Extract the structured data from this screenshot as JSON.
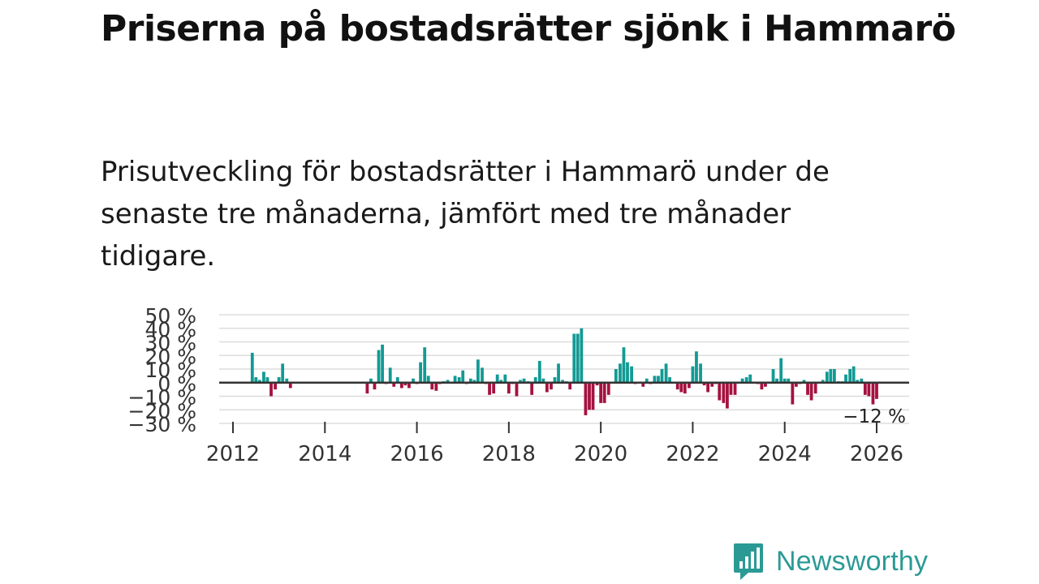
{
  "title": "Priserna på bostadsrätter sjönk i Hammarö",
  "subtitle": "Prisutveckling för bostadsrätter i Hammarö under de senaste tre månaderna, jämfört med tre månader tidigare.",
  "brand": {
    "name": "Newsworthy",
    "icon": "newsworthy-logo-icon",
    "color": "#2b9a95"
  },
  "colors": {
    "positive": "#139a94",
    "negative": "#a5123f",
    "grid": "#dddddd",
    "zero": "#333333"
  },
  "chart_data": {
    "type": "bar",
    "y_tick_labels": [
      "50 %",
      "40 %",
      "30 %",
      "20 %",
      "10 %",
      "0 %",
      "−10 %",
      "−20 %",
      "−30 %"
    ],
    "y_ticks": [
      50,
      40,
      30,
      20,
      10,
      0,
      -10,
      -20,
      -30
    ],
    "ylim": [
      -30,
      50
    ],
    "x_tick_labels": [
      "2012",
      "2014",
      "2016",
      "2018",
      "2020",
      "2022",
      "2024",
      "2026"
    ],
    "x_ticks": [
      2012,
      2014,
      2016,
      2018,
      2020,
      2022,
      2024,
      2026
    ],
    "xlim": [
      2011.75,
      2026.75
    ],
    "last_value_label": "−12 %",
    "series": [
      {
        "name": "Prisutveckling",
        "x": [
          2012.42,
          2012.5,
          2012.58,
          2012.67,
          2012.75,
          2012.83,
          2012.92,
          2013.0,
          2013.08,
          2013.17,
          2013.25,
          2014.92,
          2015.0,
          2015.08,
          2015.17,
          2015.25,
          2015.33,
          2015.42,
          2015.5,
          2015.58,
          2015.67,
          2015.75,
          2015.83,
          2015.92,
          2016.0,
          2016.08,
          2016.17,
          2016.25,
          2016.33,
          2016.42,
          2016.5,
          2016.58,
          2016.67,
          2016.75,
          2016.83,
          2016.92,
          2017.0,
          2017.08,
          2017.17,
          2017.25,
          2017.33,
          2017.42,
          2017.5,
          2017.58,
          2017.67,
          2017.75,
          2017.83,
          2017.92,
          2018.0,
          2018.08,
          2018.17,
          2018.25,
          2018.33,
          2018.42,
          2018.5,
          2018.58,
          2018.67,
          2018.75,
          2018.83,
          2018.92,
          2019.0,
          2019.08,
          2019.17,
          2019.25,
          2019.33,
          2019.42,
          2019.5,
          2019.58,
          2019.67,
          2019.75,
          2019.83,
          2019.92,
          2020.0,
          2020.08,
          2020.17,
          2020.25,
          2020.33,
          2020.42,
          2020.5,
          2020.58,
          2020.67,
          2020.75,
          2020.83,
          2020.92,
          2021.0,
          2021.08,
          2021.17,
          2021.25,
          2021.33,
          2021.42,
          2021.5,
          2021.58,
          2021.67,
          2021.75,
          2021.83,
          2021.92,
          2022.0,
          2022.08,
          2022.17,
          2022.25,
          2022.33,
          2022.42,
          2022.5,
          2022.58,
          2022.67,
          2022.75,
          2022.83,
          2022.92,
          2023.0,
          2023.08,
          2023.17,
          2023.25,
          2023.33,
          2023.42,
          2023.5,
          2023.58,
          2023.67,
          2023.75,
          2023.83,
          2023.92,
          2024.0,
          2024.08,
          2024.17,
          2024.25,
          2024.33,
          2024.42,
          2024.5,
          2024.58,
          2024.67,
          2024.75,
          2024.83,
          2024.92,
          2025.0,
          2025.08,
          2025.17,
          2025.25,
          2025.33,
          2025.42,
          2025.5,
          2025.58,
          2025.67,
          2025.75,
          2025.83,
          2025.92,
          2026.0
        ],
        "values": [
          22,
          4,
          2,
          8,
          4,
          -10,
          -5,
          4,
          14,
          3,
          -4,
          -8,
          3,
          -5,
          24,
          28,
          -1,
          11,
          -3,
          4,
          -4,
          -2,
          -4,
          3,
          -1,
          15,
          26,
          5,
          -5,
          -6,
          -1,
          1,
          2,
          0,
          5,
          4,
          9,
          -1,
          3,
          2,
          17,
          11,
          -1,
          -9,
          -8,
          6,
          2,
          6,
          -8,
          -1,
          -10,
          2,
          3,
          1,
          -9,
          4,
          16,
          3,
          -7,
          -5,
          4,
          14,
          2,
          1,
          -5,
          36,
          36,
          40,
          -24,
          -20,
          -20,
          -2,
          -15,
          -15,
          -9,
          0,
          10,
          14,
          26,
          15,
          12,
          -1,
          0,
          -3,
          3,
          -1,
          5,
          5,
          10,
          14,
          4,
          0,
          -5,
          -7,
          -8,
          -4,
          12,
          23,
          14,
          -2,
          -7,
          -3,
          -1,
          -13,
          -15,
          -19,
          -9,
          -9,
          0,
          3,
          4,
          6,
          0,
          -1,
          -5,
          -3,
          0,
          10,
          3,
          18,
          3,
          3,
          -16,
          -3,
          -1,
          2,
          -9,
          -13,
          -8,
          0,
          2,
          8,
          10,
          10,
          1,
          1,
          6,
          10,
          12,
          2,
          3,
          -9,
          -10,
          -16,
          -12
        ]
      }
    ]
  }
}
